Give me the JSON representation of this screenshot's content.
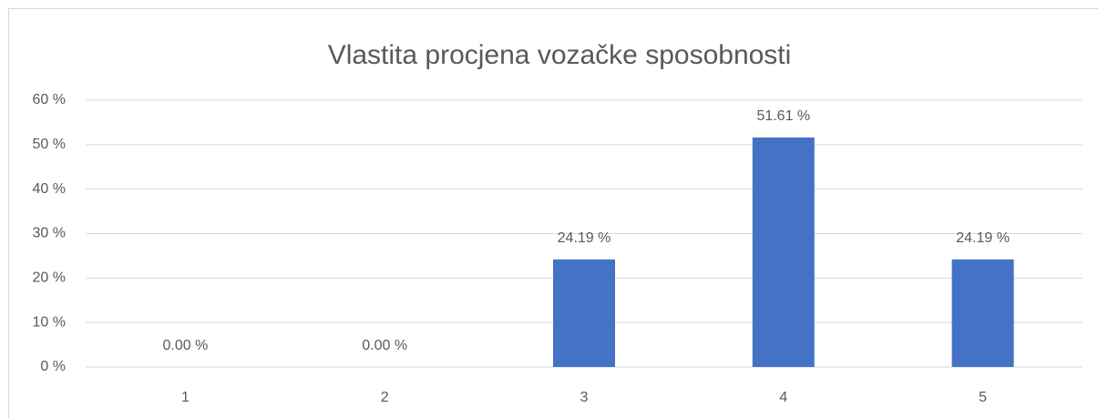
{
  "chart_data": {
    "type": "bar",
    "title": "Vlastita procjena vozačke sposobnosti",
    "categories": [
      "1",
      "2",
      "3",
      "4",
      "5"
    ],
    "values": [
      0,
      0,
      24.19,
      51.61,
      24.19
    ],
    "value_labels": [
      "0.00 %",
      "0.00 %",
      "24.19 %",
      "51.61 %",
      "24.19 %"
    ],
    "color": "#4472c4",
    "ylim": [
      0,
      60
    ],
    "yticks": [
      {
        "value": 0,
        "label": "0 %"
      },
      {
        "value": 10,
        "label": "10 %"
      },
      {
        "value": 20,
        "label": "20 %"
      },
      {
        "value": 30,
        "label": "30 %"
      },
      {
        "value": 40,
        "label": "40 %"
      },
      {
        "value": 50,
        "label": "50 %"
      },
      {
        "value": 60,
        "label": "60 %"
      }
    ],
    "grid": true
  }
}
